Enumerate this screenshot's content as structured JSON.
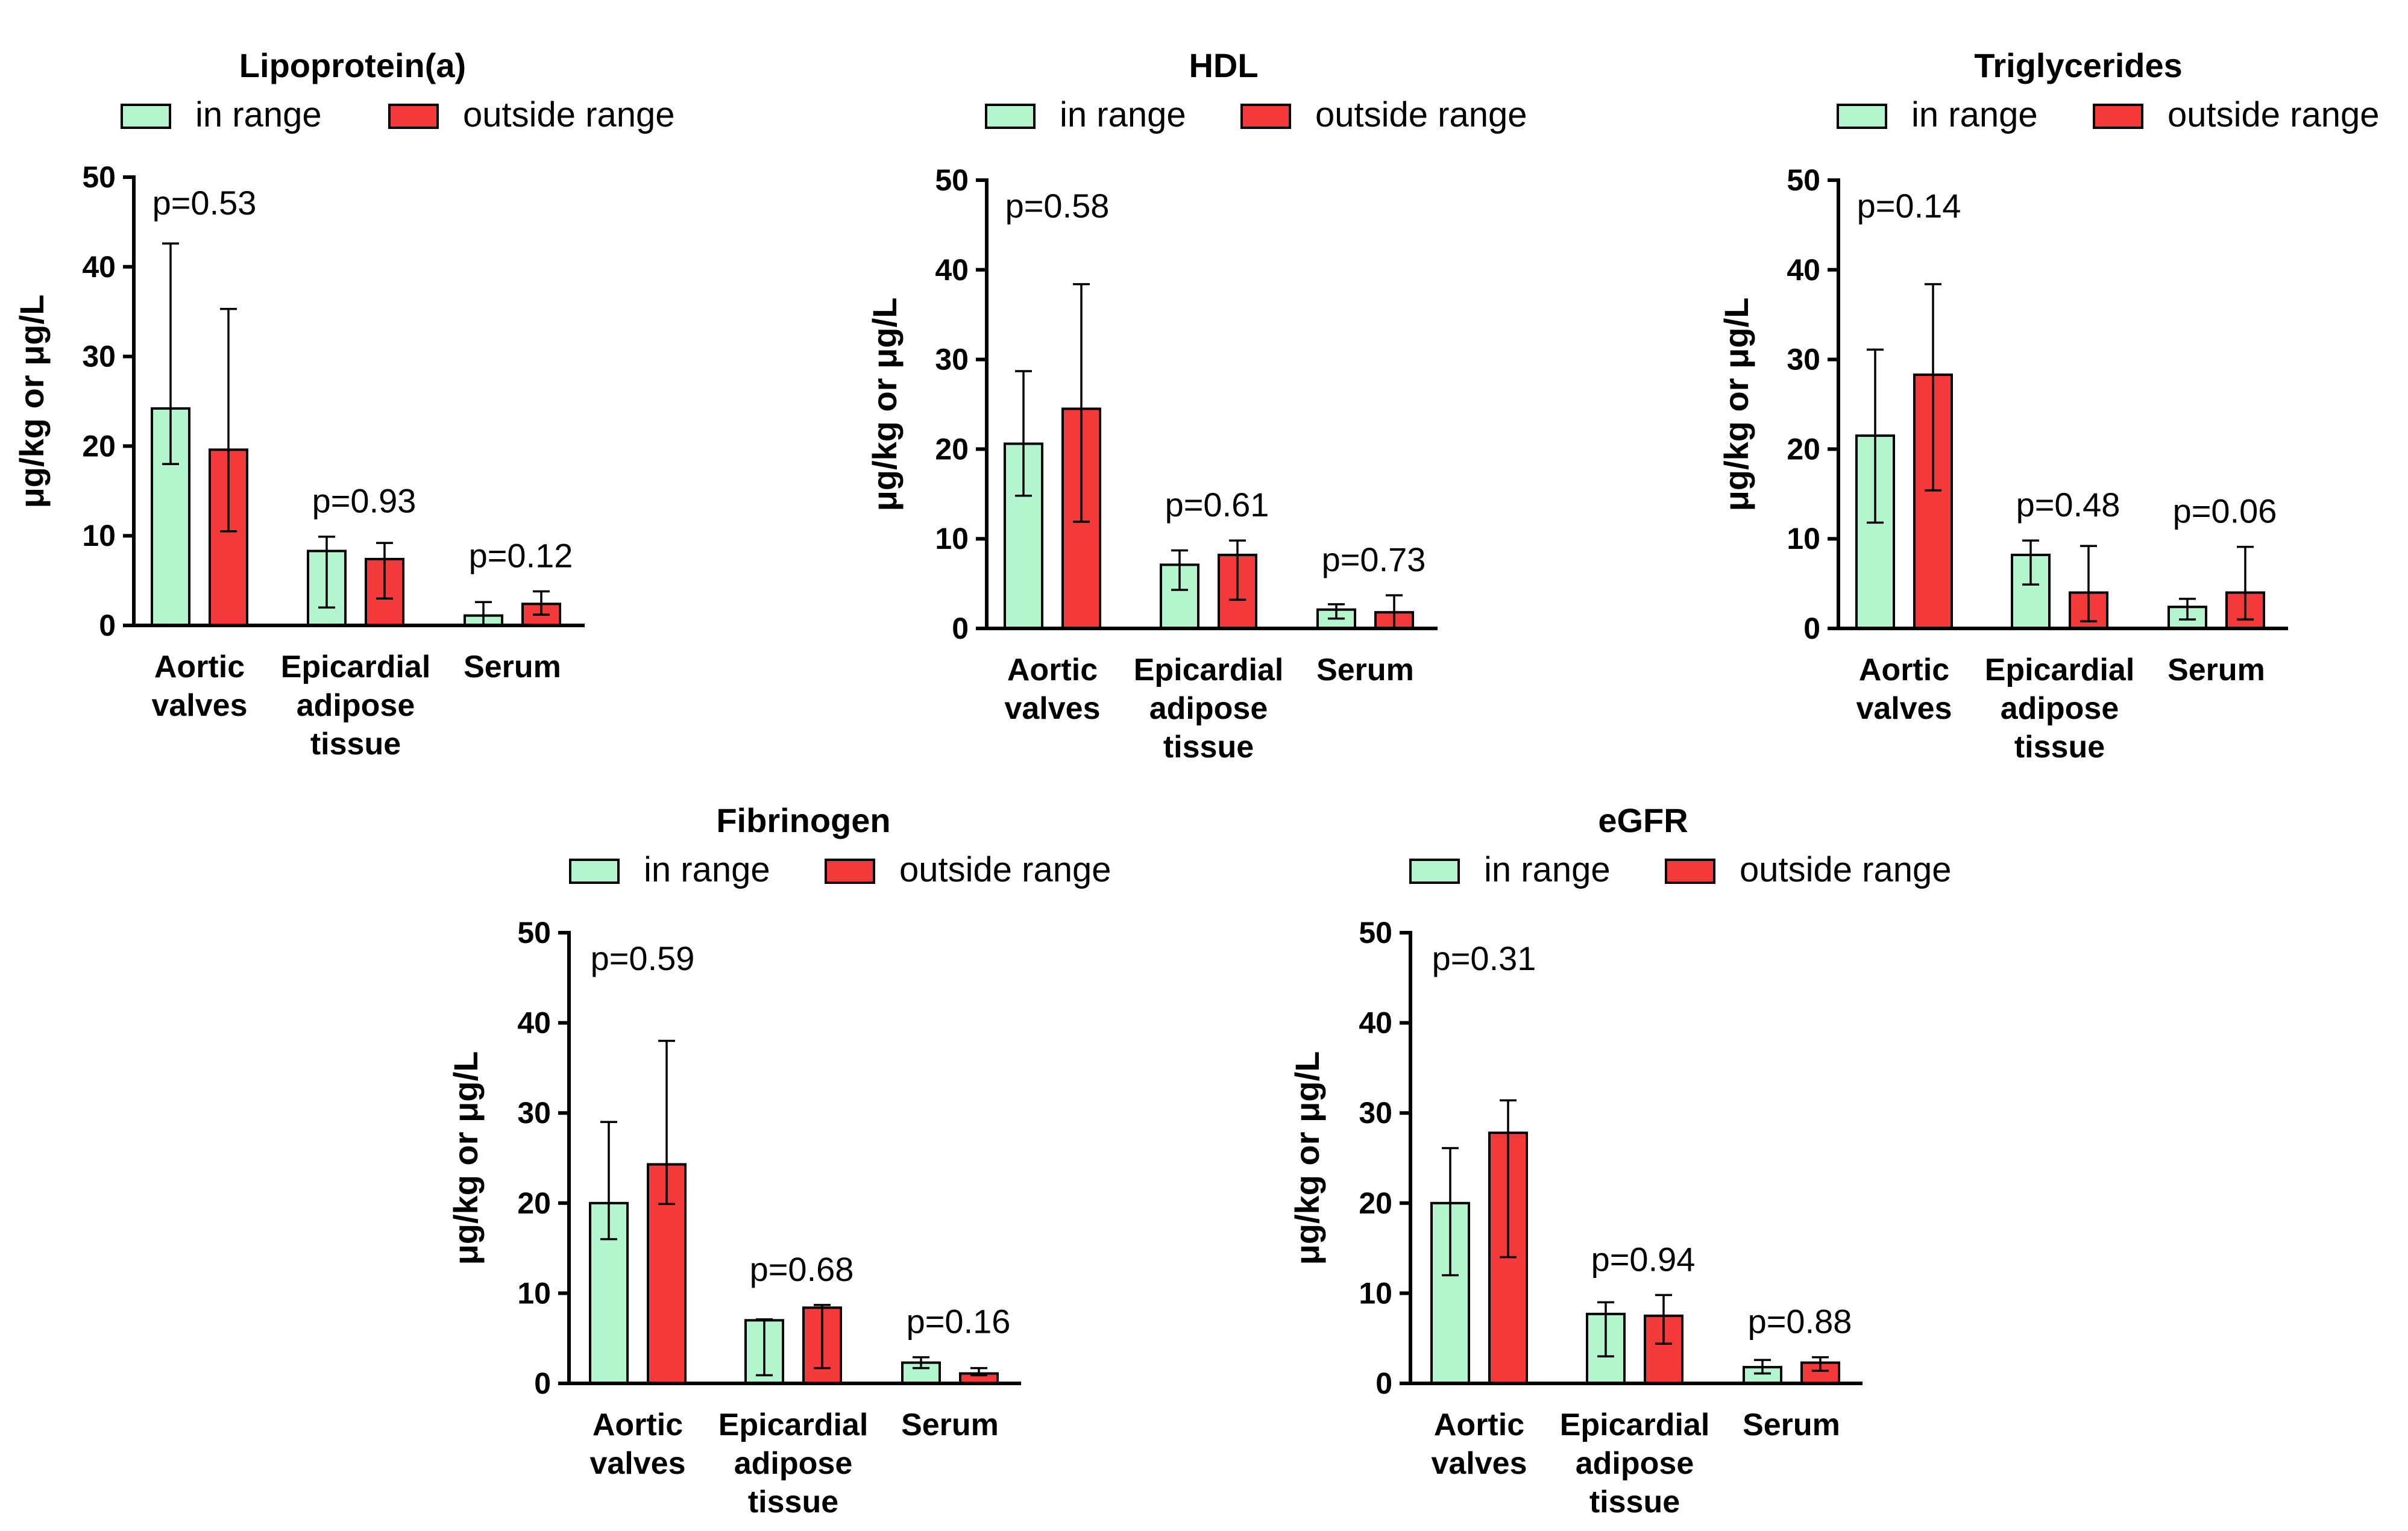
{
  "colors": {
    "in_range": "#b3f5cf",
    "outside_range": "#f23a3a",
    "axis": "#000000"
  },
  "legend": {
    "in_range": "in range",
    "outside_range": "outside range"
  },
  "chart_data": [
    {
      "type": "bar",
      "title": "Lipoprotein(a)",
      "ylabel": "μg/kg or μg/L",
      "ylim": [
        0,
        50
      ],
      "yticks": [
        "0",
        "10",
        "20",
        "30",
        "40",
        "50"
      ],
      "categories": [
        "Aortic valves",
        "Epicardial adipose tissue",
        "Serum"
      ],
      "category_lines": [
        [
          "Aortic",
          "valves"
        ],
        [
          "Epicardial",
          "adipose",
          "tissue"
        ],
        [
          "Serum"
        ]
      ],
      "series": [
        {
          "name": "in range",
          "values": [
            24.2,
            8.3,
            1.1
          ],
          "err_low": [
            18.0,
            2.0,
            0.0
          ],
          "err_high": [
            42.6,
            9.9,
            2.6
          ]
        },
        {
          "name": "outside range",
          "values": [
            19.6,
            7.4,
            2.4
          ],
          "err_low": [
            10.5,
            3.0,
            1.2
          ],
          "err_high": [
            35.3,
            9.2,
            3.8
          ]
        }
      ],
      "p_values": [
        "p=0.53",
        "p=0.93",
        "p=0.12"
      ]
    },
    {
      "type": "bar",
      "title": "HDL",
      "ylabel": "μg/kg or μg/L",
      "ylim": [
        0,
        50
      ],
      "yticks": [
        "0",
        "10",
        "20",
        "30",
        "40",
        "50"
      ],
      "categories": [
        "Aortic valves",
        "Epicardial adipose tissue",
        "Serum"
      ],
      "category_lines": [
        [
          "Aortic",
          "valves"
        ],
        [
          "Epicardial",
          "adipose",
          "tissue"
        ],
        [
          "Serum"
        ]
      ],
      "series": [
        {
          "name": "in range",
          "values": [
            20.6,
            7.1,
            2.1
          ],
          "err_low": [
            14.8,
            4.3,
            1.1
          ],
          "err_high": [
            28.7,
            8.7,
            2.7
          ]
        },
        {
          "name": "outside range",
          "values": [
            24.5,
            8.2,
            1.8
          ],
          "err_low": [
            11.9,
            3.2,
            0.0
          ],
          "err_high": [
            38.4,
            9.8,
            3.7
          ]
        }
      ],
      "p_values": [
        "p=0.58",
        "p=0.61",
        "p=0.73"
      ]
    },
    {
      "type": "bar",
      "title": "Triglycerides",
      "ylabel": "μg/kg or μg/L",
      "ylim": [
        0,
        50
      ],
      "yticks": [
        "0",
        "10",
        "20",
        "30",
        "40",
        "50"
      ],
      "categories": [
        "Aortic valves",
        "Epicardial adipose tissue",
        "Serum"
      ],
      "category_lines": [
        [
          "Aortic",
          "valves"
        ],
        [
          "Epicardial",
          "adipose",
          "tissue"
        ],
        [
          "Serum"
        ]
      ],
      "series": [
        {
          "name": "in range",
          "values": [
            21.5,
            8.2,
            2.4
          ],
          "err_low": [
            11.8,
            4.9,
            1.0
          ],
          "err_high": [
            31.1,
            9.8,
            3.3
          ]
        },
        {
          "name": "outside range",
          "values": [
            28.3,
            4.0,
            4.0
          ],
          "err_low": [
            15.4,
            0.8,
            1.0
          ],
          "err_high": [
            38.4,
            9.2,
            9.1
          ]
        }
      ],
      "p_values": [
        "p=0.14",
        "p=0.48",
        "p=0.06"
      ]
    },
    {
      "type": "bar",
      "title": "Fibrinogen",
      "ylabel": "μg/kg or μg/L",
      "ylim": [
        0,
        50
      ],
      "yticks": [
        "0",
        "10",
        "20",
        "30",
        "40",
        "50"
      ],
      "categories": [
        "Aortic valves",
        "Epicardial adipose tissue",
        "Serum"
      ],
      "category_lines": [
        [
          "Aortic",
          "valves"
        ],
        [
          "Epicardial",
          "adipose",
          "tissue"
        ],
        [
          "Serum"
        ]
      ],
      "series": [
        {
          "name": "in range",
          "values": [
            20.0,
            7.0,
            2.3
          ],
          "err_low": [
            16.0,
            0.9,
            1.7
          ],
          "err_high": [
            29.0,
            7.1,
            2.9
          ]
        },
        {
          "name": "outside range",
          "values": [
            24.3,
            8.4,
            1.1
          ],
          "err_low": [
            19.9,
            1.7,
            0.9
          ],
          "err_high": [
            38.0,
            8.7,
            1.7
          ]
        }
      ],
      "p_values": [
        "p=0.59",
        "p=0.68",
        "p=0.16"
      ]
    },
    {
      "type": "bar",
      "title": "eGFR",
      "ylabel": "μg/kg or μg/L",
      "ylim": [
        0,
        50
      ],
      "yticks": [
        "0",
        "10",
        "20",
        "30",
        "40",
        "50"
      ],
      "categories": [
        "Aortic valves",
        "Epicardial adipose tissue",
        "Serum"
      ],
      "category_lines": [
        [
          "Aortic",
          "valves"
        ],
        [
          "Epicardial",
          "adipose",
          "tissue"
        ],
        [
          "Serum"
        ]
      ],
      "series": [
        {
          "name": "in range",
          "values": [
            20.0,
            7.7,
            1.8
          ],
          "err_low": [
            12.0,
            3.0,
            1.1
          ],
          "err_high": [
            26.1,
            9.0,
            2.6
          ]
        },
        {
          "name": "outside range",
          "values": [
            27.8,
            7.5,
            2.3
          ],
          "err_low": [
            14.0,
            4.4,
            1.4
          ],
          "err_high": [
            31.4,
            9.8,
            2.9
          ]
        }
      ],
      "p_values": [
        "p=0.31",
        "p=0.94",
        "p=0.88"
      ]
    }
  ]
}
